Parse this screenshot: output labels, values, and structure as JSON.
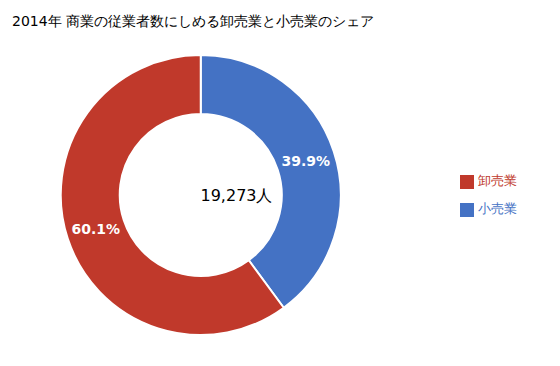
{
  "chart_data": {
    "type": "pie",
    "title": "2014年 商業の従業者数にしめる卸売業と小売業のシェア",
    "categories": [
      "小売業",
      "卸売業"
    ],
    "values": [
      39.9,
      60.1
    ],
    "value_labels": [
      "39.9%",
      "60.1%"
    ],
    "colors": [
      "#4472C4",
      "#C0392B"
    ],
    "data_labels": true,
    "annotations": [
      "19,273人"
    ],
    "legend": "right"
  }
}
